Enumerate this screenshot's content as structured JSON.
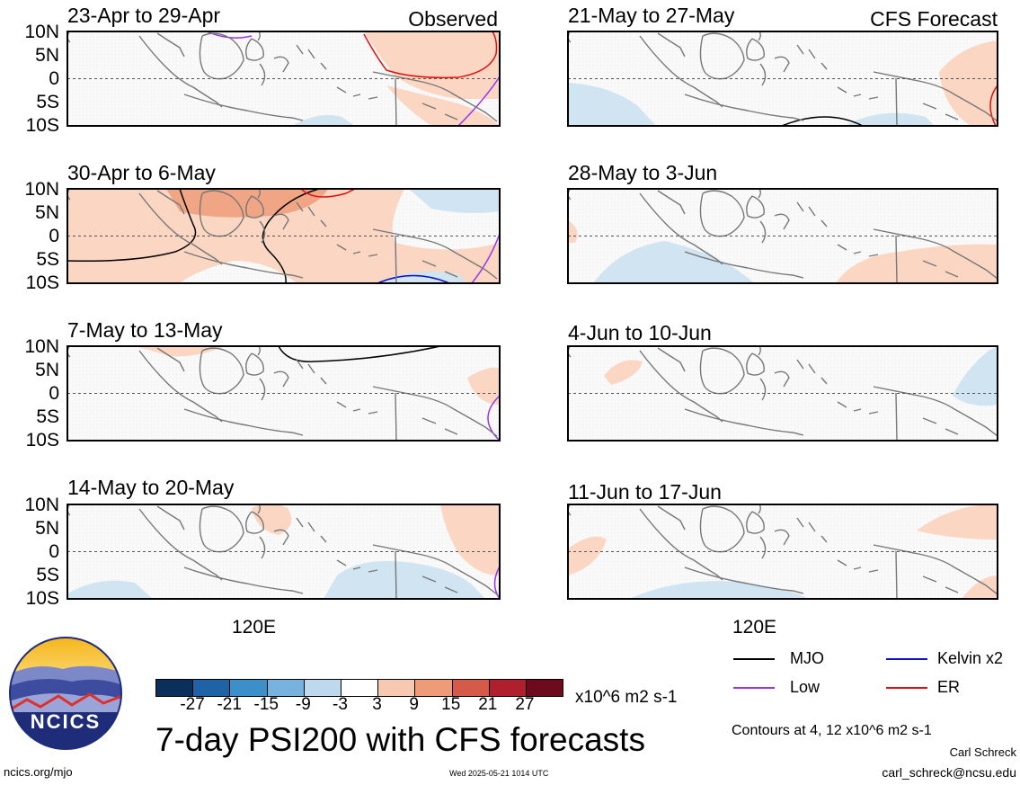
{
  "header": {
    "left_label": "Observed",
    "right_label": "CFS Forecast"
  },
  "panels_left": [
    {
      "period": "23-Apr to 29-Apr"
    },
    {
      "period": "30-Apr to 6-May"
    },
    {
      "period": "7-May to 13-May"
    },
    {
      "period": "14-May to 20-May"
    }
  ],
  "panels_right": [
    {
      "period": "21-May to 27-May"
    },
    {
      "period": "28-May to 3-Jun"
    },
    {
      "period": "4-Jun to 10-Jun"
    },
    {
      "period": "11-Jun to 17-Jun"
    }
  ],
  "lat_labels": [
    "10N",
    "5N",
    "0",
    "5S",
    "10S"
  ],
  "lon_label": "120E",
  "colorbar": {
    "ticks": [
      "-27",
      "-21",
      "-15",
      "-9",
      "-3",
      "3",
      "9",
      "15",
      "21",
      "27"
    ],
    "colors": [
      "#0a2f5a",
      "#1f63a6",
      "#3c8fc9",
      "#76b2dd",
      "#bcd9ee",
      "#ffffff",
      "#f7c9b0",
      "#ef9b78",
      "#d65a4a",
      "#b01f2e",
      "#6e0a1e"
    ],
    "units": "x10^6 m2 s-1"
  },
  "legend": [
    {
      "label": "MJO",
      "color": "#000000"
    },
    {
      "label": "Kelvin x2",
      "color": "#1010c8"
    },
    {
      "label": "Low",
      "color": "#9933ee"
    },
    {
      "label": "ER",
      "color": "#e01010"
    }
  ],
  "contour_note": "Contours at 4, 12 x10^6 m2 s-1",
  "title": "7-day PSI200 with CFS forecasts",
  "logo": {
    "text": "NCICS"
  },
  "footer": {
    "url": "ncics.org/mjo",
    "timestamp": "Wed 2025-05-21 1014 UTC",
    "author": "Carl Schreck",
    "email": "carl_schreck@ncsu.edu"
  },
  "colors": {
    "positive": "#fad6c3",
    "positive_strong": "#f0a585",
    "negative": "#d0e4f2",
    "coast": "#777777"
  }
}
